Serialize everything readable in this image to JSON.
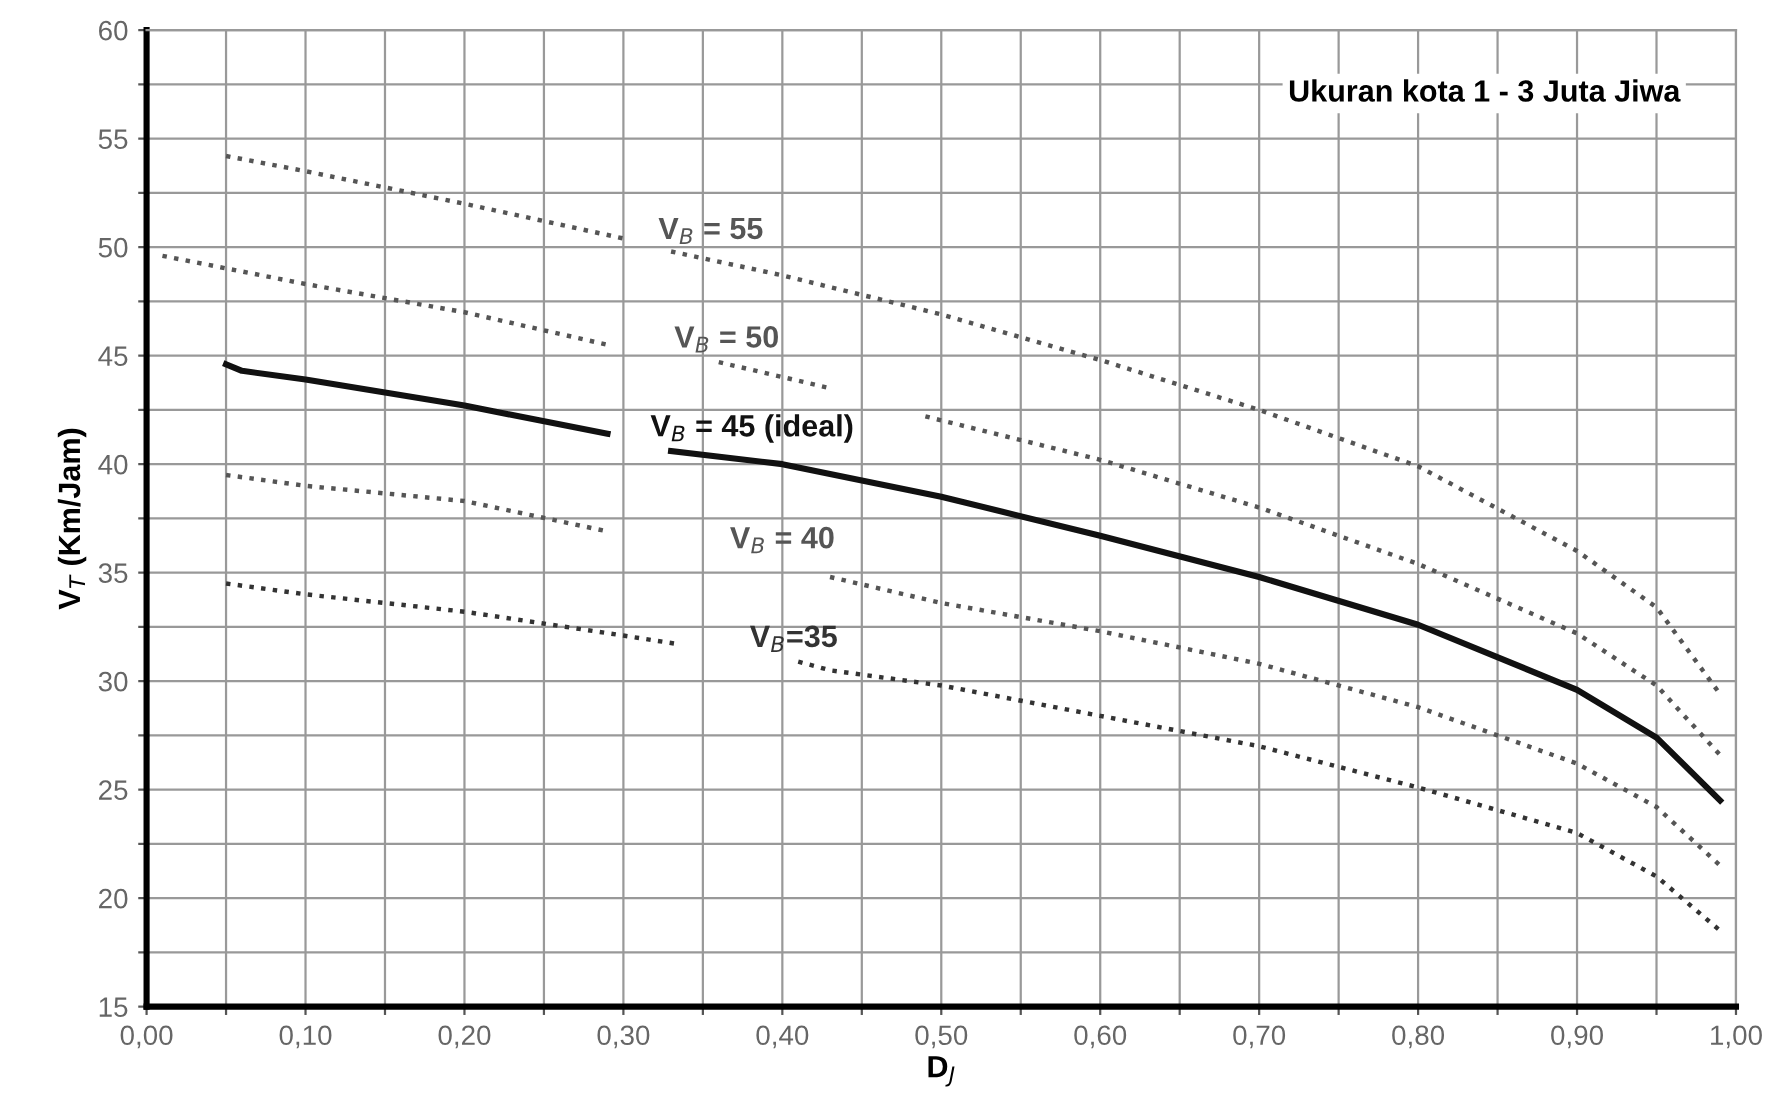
{
  "chart_data": {
    "type": "line",
    "title": "Ukuran kota 1 - 3 Juta Jiwa",
    "xlabel": "D$_{J}$",
    "ylabel": "V$_{T}$ (Km/Jam)",
    "xlim": [
      0,
      1
    ],
    "ylim": [
      15,
      60
    ],
    "xticks": [
      {
        "value": 0,
        "label": "0,00"
      },
      {
        "value": 0.05,
        "label": null
      },
      {
        "value": 0.1,
        "label": "0,10"
      },
      {
        "value": 0.15,
        "label": null
      },
      {
        "value": 0.2,
        "label": "0,20"
      },
      {
        "value": 0.25,
        "label": null
      },
      {
        "value": 0.3,
        "label": "0,30"
      },
      {
        "value": 0.35,
        "label": null
      },
      {
        "value": 0.4,
        "label": "0,40"
      },
      {
        "value": 0.45,
        "label": null
      },
      {
        "value": 0.5,
        "label": "0,50"
      },
      {
        "value": 0.55,
        "label": null
      },
      {
        "value": 0.6,
        "label": "0,60"
      },
      {
        "value": 0.65,
        "label": null
      },
      {
        "value": 0.7,
        "label": "0,70"
      },
      {
        "value": 0.75,
        "label": null
      },
      {
        "value": 0.8,
        "label": "0,80"
      },
      {
        "value": 0.85,
        "label": null
      },
      {
        "value": 0.9,
        "label": "0,90"
      },
      {
        "value": 0.95,
        "label": null
      },
      {
        "value": 1,
        "label": "1,00"
      }
    ],
    "yticks": [
      15,
      {
        "value": 17.5,
        "label": null
      },
      20,
      {
        "value": 22.5,
        "label": null
      },
      25,
      {
        "value": 27.5,
        "label": null
      },
      30,
      {
        "value": 32.5,
        "label": null
      },
      35,
      {
        "value": 37.5,
        "label": null
      },
      40,
      {
        "value": 42.5,
        "label": null
      },
      45,
      {
        "value": 47.5,
        "label": null
      },
      50,
      {
        "value": 52.5,
        "label": null
      },
      55,
      {
        "value": 57.5,
        "label": null
      },
      60
    ],
    "grid": true,
    "marker": "none",
    "series": [
      {
        "name": "V$_{B}$ = 55",
        "color": "#555555",
        "line_style": "dotted",
        "x": [
          0.05,
          0.1,
          0.2,
          0.3,
          0.31,
          0.33,
          0.4,
          0.5,
          0.6,
          0.7,
          0.8,
          0.9,
          0.95,
          0.99
        ],
        "values": [
          54.2,
          53.5,
          52.0,
          50.4,
          null,
          49.8,
          48.7,
          46.9,
          44.8,
          42.5,
          39.9,
          36.0,
          33.4,
          29.4
        ]
      },
      {
        "name": "V$_{B}$ = 50",
        "color": "#555555",
        "line_style": "dotted",
        "x": [
          0.01,
          0.1,
          0.2,
          0.29,
          0.32,
          0.36,
          0.43,
          0.46,
          0.49,
          0.6,
          0.7,
          0.8,
          0.9,
          0.95,
          0.99
        ],
        "values": [
          49.6,
          48.3,
          47.0,
          45.5,
          null,
          44.7,
          43.5,
          null,
          42.2,
          40.2,
          38.0,
          35.4,
          32.2,
          29.8,
          26.6
        ]
      },
      {
        "name": "V$_{B}$ = 45 (ideal)",
        "color": "#111111",
        "line_style": "solid",
        "x": [
          0.05,
          0.06,
          0.1,
          0.2,
          0.29,
          0.31,
          0.33,
          0.4,
          0.5,
          0.6,
          0.7,
          0.8,
          0.9,
          0.95,
          0.99
        ],
        "values": [
          44.6,
          44.3,
          43.9,
          42.7,
          41.4,
          null,
          40.6,
          40.0,
          38.5,
          36.7,
          34.8,
          32.6,
          29.6,
          27.4,
          24.5
        ]
      },
      {
        "name": "V$_{B}$ = 40",
        "color": "#555555",
        "line_style": "dotted",
        "x": [
          0.05,
          0.1,
          0.2,
          0.29,
          0.36,
          0.43,
          0.5,
          0.6,
          0.7,
          0.8,
          0.9,
          0.95,
          0.99
        ],
        "values": [
          39.5,
          39.0,
          38.3,
          36.9,
          null,
          34.8,
          33.6,
          32.3,
          30.8,
          28.8,
          26.2,
          24.2,
          21.5
        ]
      },
      {
        "name": "V$_{B}$=35",
        "color": "#333333",
        "line_style": "dotted",
        "x": [
          0.05,
          0.1,
          0.2,
          0.3,
          0.335,
          0.37,
          0.41,
          0.43,
          0.5,
          0.6,
          0.7,
          0.8,
          0.9,
          0.95,
          0.99
        ],
        "values": [
          34.5,
          34.0,
          33.2,
          32.1,
          31.7,
          null,
          30.9,
          30.5,
          29.8,
          28.4,
          27.0,
          25.1,
          23.0,
          21.0,
          18.5
        ]
      }
    ]
  }
}
